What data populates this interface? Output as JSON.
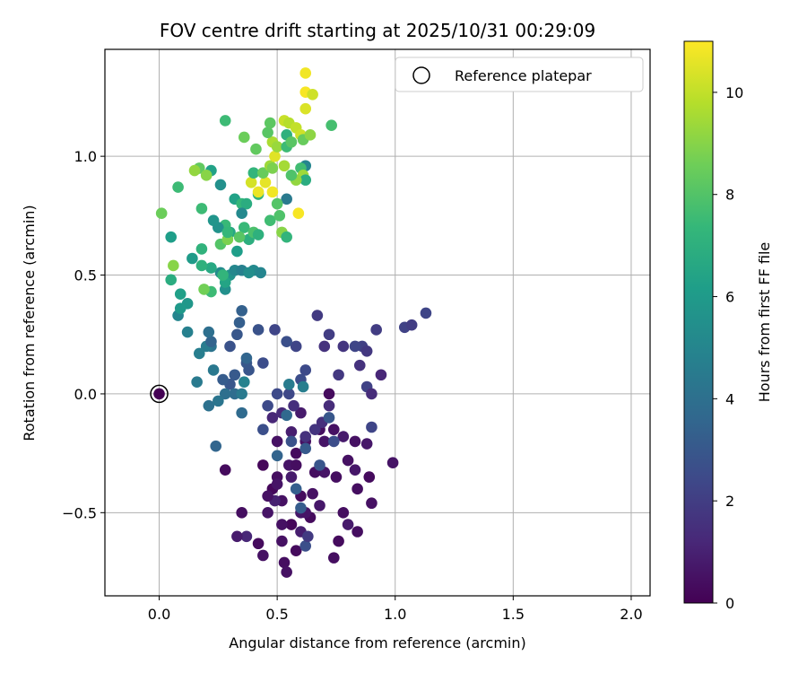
{
  "chart_data": {
    "type": "scatter",
    "title": "FOV centre drift starting at 2025/10/31 00:29:09",
    "xlabel": "Angular distance from reference (arcmin)",
    "ylabel": "Rotation from reference (arcmin)",
    "xlim": [
      -0.23,
      2.08
    ],
    "ylim": [
      -0.85,
      1.45
    ],
    "xticks": [
      0.0,
      0.5,
      1.0,
      1.5,
      2.0
    ],
    "xtick_labels": [
      "0.0",
      "0.5",
      "1.0",
      "1.5",
      "2.0"
    ],
    "yticks": [
      -0.5,
      0.0,
      0.5,
      1.0
    ],
    "ytick_labels": [
      "−0.5",
      "0.0",
      "0.5",
      "1.0"
    ],
    "grid": true,
    "legend": {
      "position": "top-right",
      "entries": [
        "Reference platepar"
      ]
    },
    "colorbar": {
      "label": "Hours from first FF file",
      "range": [
        0,
        11
      ],
      "ticks": [
        0,
        2,
        4,
        6,
        8,
        10
      ],
      "tick_labels": [
        "0",
        "2",
        "4",
        "6",
        "8",
        "10"
      ],
      "colormap": [
        "#440154",
        "#482878",
        "#3e4989",
        "#31688e",
        "#26828e",
        "#1f9e89",
        "#35b779",
        "#6ece58",
        "#b5de2b",
        "#fde725"
      ]
    },
    "reference_point": {
      "x": 0.0,
      "y": 0.0
    },
    "points": [
      [
        0.0,
        0.0,
        0.0
      ],
      [
        0.72,
        0.0,
        0.3
      ],
      [
        0.68,
        -0.15,
        0.4
      ],
      [
        0.62,
        -0.2,
        0.5
      ],
      [
        0.58,
        -0.25,
        0.3
      ],
      [
        0.55,
        -0.3,
        0.6
      ],
      [
        0.5,
        -0.35,
        0.4
      ],
      [
        0.48,
        -0.4,
        0.2
      ],
      [
        0.52,
        -0.45,
        0.5
      ],
      [
        0.6,
        -0.5,
        0.7
      ],
      [
        0.64,
        -0.52,
        0.3
      ],
      [
        0.7,
        -0.33,
        0.6
      ],
      [
        0.75,
        -0.35,
        0.4
      ],
      [
        0.8,
        -0.28,
        0.5
      ],
      [
        0.83,
        -0.32,
        0.7
      ],
      [
        0.78,
        -0.5,
        0.4
      ],
      [
        0.76,
        -0.62,
        0.3
      ],
      [
        0.84,
        -0.58,
        0.4
      ],
      [
        0.8,
        -0.55,
        0.8
      ],
      [
        0.56,
        -0.55,
        0.2
      ],
      [
        0.52,
        -0.62,
        0.5
      ],
      [
        0.58,
        -0.66,
        0.3
      ],
      [
        0.53,
        -0.71,
        0.4
      ],
      [
        0.54,
        -0.75,
        0.5
      ],
      [
        0.46,
        -0.5,
        0.6
      ],
      [
        0.44,
        -0.3,
        0.2
      ],
      [
        0.28,
        -0.32,
        0.3
      ],
      [
        0.35,
        -0.5,
        0.4
      ],
      [
        0.42,
        -0.63,
        0.3
      ],
      [
        0.44,
        -0.68,
        0.5
      ],
      [
        0.56,
        -0.35,
        0.8
      ],
      [
        0.6,
        -0.43,
        0.3
      ],
      [
        0.65,
        -0.42,
        0.5
      ],
      [
        0.68,
        -0.47,
        0.7
      ],
      [
        0.66,
        -0.33,
        0.4
      ],
      [
        0.7,
        -0.2,
        0.6
      ],
      [
        0.74,
        -0.15,
        0.5
      ],
      [
        0.78,
        -0.18,
        0.8
      ],
      [
        0.83,
        -0.2,
        0.5
      ],
      [
        0.89,
        -0.35,
        0.3
      ],
      [
        0.84,
        -0.4,
        0.4
      ],
      [
        0.9,
        -0.46,
        0.5
      ],
      [
        0.99,
        -0.29,
        0.6
      ],
      [
        0.88,
        -0.21,
        0.7
      ],
      [
        0.6,
        -0.08,
        0.8
      ],
      [
        0.56,
        -0.16,
        0.9
      ],
      [
        0.5,
        -0.2,
        0.5
      ],
      [
        0.49,
        -0.45,
        1.0
      ],
      [
        0.52,
        -0.55,
        0.5
      ],
      [
        0.74,
        -0.69,
        0.4
      ],
      [
        0.37,
        -0.6,
        1.2
      ],
      [
        0.33,
        -0.6,
        0.8
      ],
      [
        0.6,
        -0.58,
        0.9
      ],
      [
        0.62,
        -0.5,
        0.6
      ],
      [
        0.58,
        -0.3,
        0.4
      ],
      [
        0.46,
        -0.43,
        0.5
      ],
      [
        0.5,
        -0.38,
        0.6
      ],
      [
        0.48,
        -0.1,
        1.2
      ],
      [
        0.52,
        -0.08,
        1.3
      ],
      [
        0.57,
        -0.05,
        1.5
      ],
      [
        0.62,
        -0.18,
        1.6
      ],
      [
        0.66,
        -0.15,
        1.7
      ],
      [
        0.69,
        -0.12,
        1.5
      ],
      [
        0.72,
        -0.05,
        1.4
      ],
      [
        0.76,
        0.08,
        1.8
      ],
      [
        0.7,
        0.2,
        1.6
      ],
      [
        0.67,
        0.33,
        1.9
      ],
      [
        0.72,
        0.25,
        2.0
      ],
      [
        0.78,
        0.2,
        1.7
      ],
      [
        0.85,
        0.12,
        1.6
      ],
      [
        0.86,
        0.2,
        2.1
      ],
      [
        0.88,
        0.03,
        2.2
      ],
      [
        0.9,
        -0.14,
        2.3
      ],
      [
        0.9,
        0.0,
        1.4
      ],
      [
        0.92,
        0.27,
        2.0
      ],
      [
        0.94,
        0.08,
        1.2
      ],
      [
        0.88,
        0.18,
        1.8
      ],
      [
        0.83,
        0.2,
        2.3
      ],
      [
        1.04,
        0.28,
        2.2
      ],
      [
        1.07,
        0.29,
        2.0
      ],
      [
        1.13,
        0.34,
        2.3
      ],
      [
        0.5,
        0.0,
        2.5
      ],
      [
        0.55,
        0.0,
        2.4
      ],
      [
        0.6,
        0.06,
        2.6
      ],
      [
        0.62,
        0.1,
        2.5
      ],
      [
        0.58,
        0.2,
        2.3
      ],
      [
        0.54,
        0.22,
        2.7
      ],
      [
        0.49,
        0.27,
        2.3
      ],
      [
        0.44,
        0.13,
        2.6
      ],
      [
        0.42,
        0.27,
        2.8
      ],
      [
        0.38,
        0.1,
        2.9
      ],
      [
        0.37,
        0.13,
        3.0
      ],
      [
        0.32,
        0.08,
        3.1
      ],
      [
        0.3,
        0.04,
        3.0
      ],
      [
        0.27,
        0.06,
        3.2
      ],
      [
        0.3,
        0.2,
        2.8
      ],
      [
        0.33,
        0.25,
        3.0
      ],
      [
        0.34,
        0.3,
        3.3
      ],
      [
        0.35,
        0.35,
        3.4
      ],
      [
        0.37,
        0.15,
        3.6
      ],
      [
        0.46,
        -0.05,
        2.5
      ],
      [
        0.44,
        -0.15,
        2.7
      ],
      [
        0.56,
        -0.2,
        2.8
      ],
      [
        0.62,
        -0.23,
        3.1
      ],
      [
        0.68,
        -0.3,
        2.9
      ],
      [
        0.72,
        -0.1,
        3.0
      ],
      [
        0.74,
        -0.2,
        2.6
      ],
      [
        0.62,
        -0.64,
        2.7
      ],
      [
        0.6,
        -0.48,
        3.2
      ],
      [
        0.63,
        -0.6,
        1.9
      ],
      [
        0.58,
        -0.4,
        3.3
      ],
      [
        0.5,
        -0.26,
        3.5
      ],
      [
        0.54,
        -0.09,
        3.7
      ],
      [
        0.35,
        -0.08,
        3.8
      ],
      [
        0.32,
        0.0,
        3.9
      ],
      [
        0.28,
        0.0,
        4.0
      ],
      [
        0.24,
        -0.22,
        3.6
      ],
      [
        0.21,
        -0.05,
        4.1
      ],
      [
        0.22,
        0.2,
        4.2
      ],
      [
        0.2,
        0.2,
        4.6
      ],
      [
        0.23,
        0.1,
        4.4
      ],
      [
        0.25,
        -0.03,
        4.3
      ],
      [
        0.16,
        0.05,
        4.5
      ],
      [
        0.17,
        0.17,
        4.7
      ],
      [
        0.22,
        0.22,
        3.5
      ],
      [
        0.21,
        0.26,
        4.0
      ],
      [
        0.12,
        0.26,
        4.8
      ],
      [
        0.08,
        0.33,
        5.0
      ],
      [
        0.35,
        0.0,
        4.5
      ],
      [
        0.36,
        0.05,
        4.9
      ],
      [
        0.55,
        0.04,
        4.6
      ],
      [
        0.61,
        0.03,
        4.7
      ],
      [
        0.28,
        0.44,
        5.5
      ],
      [
        0.3,
        0.5,
        5.6
      ],
      [
        0.32,
        0.52,
        5.1
      ],
      [
        0.35,
        0.52,
        4.8
      ],
      [
        0.4,
        0.52,
        5.2
      ],
      [
        0.38,
        0.51,
        5.4
      ],
      [
        0.43,
        0.51,
        5.0
      ],
      [
        0.26,
        0.51,
        5.3
      ],
      [
        0.22,
        0.53,
        6.6
      ],
      [
        0.18,
        0.54,
        7.0
      ],
      [
        0.14,
        0.57,
        6.0
      ],
      [
        0.18,
        0.61,
        7.1
      ],
      [
        0.12,
        0.38,
        5.8
      ],
      [
        0.09,
        0.42,
        6.2
      ],
      [
        0.09,
        0.36,
        5.9
      ],
      [
        0.05,
        0.48,
        6.8
      ],
      [
        0.06,
        0.54,
        9.0
      ],
      [
        0.22,
        0.43,
        7.5
      ],
      [
        0.19,
        0.44,
        8.6
      ],
      [
        0.28,
        0.47,
        6.4
      ],
      [
        0.27,
        0.5,
        7.2
      ],
      [
        0.33,
        0.6,
        6.1
      ],
      [
        0.3,
        0.68,
        6.5
      ],
      [
        0.28,
        0.71,
        7.4
      ],
      [
        0.26,
        0.63,
        8.0
      ],
      [
        0.29,
        0.65,
        8.8
      ],
      [
        0.25,
        0.7,
        5.6
      ],
      [
        0.23,
        0.73,
        5.7
      ],
      [
        0.32,
        0.82,
        6.3
      ],
      [
        0.35,
        0.8,
        7.3
      ],
      [
        0.37,
        0.8,
        6.8
      ],
      [
        0.35,
        0.76,
        5.2
      ],
      [
        0.36,
        0.7,
        7.4
      ],
      [
        0.38,
        0.65,
        6.9
      ],
      [
        0.4,
        0.68,
        7.8
      ],
      [
        0.42,
        0.67,
        7.0
      ],
      [
        0.42,
        0.84,
        7.1
      ],
      [
        0.47,
        0.73,
        7.6
      ],
      [
        0.51,
        0.75,
        7.9
      ],
      [
        0.52,
        0.68,
        9.0
      ],
      [
        0.54,
        0.66,
        7.2
      ],
      [
        0.59,
        0.76,
        10.9
      ],
      [
        0.54,
        0.82,
        4.5
      ],
      [
        0.45,
        0.89,
        10.6
      ],
      [
        0.48,
        0.85,
        10.8
      ],
      [
        0.42,
        0.85,
        10.7
      ],
      [
        0.39,
        0.89,
        10.3
      ],
      [
        0.4,
        0.93,
        7.2
      ],
      [
        0.44,
        0.93,
        8.4
      ],
      [
        0.47,
        0.96,
        9.4
      ],
      [
        0.48,
        0.95,
        8.8
      ],
      [
        0.49,
        1.0,
        10.5
      ],
      [
        0.48,
        1.06,
        9.6
      ],
      [
        0.46,
        1.1,
        8.1
      ],
      [
        0.47,
        1.14,
        8.2
      ],
      [
        0.5,
        1.04,
        9.3
      ],
      [
        0.54,
        1.04,
        7.5
      ],
      [
        0.54,
        1.09,
        7.0
      ],
      [
        0.53,
        1.15,
        10.1
      ],
      [
        0.55,
        1.14,
        9.8
      ],
      [
        0.56,
        1.06,
        8.1
      ],
      [
        0.58,
        1.12,
        10.0
      ],
      [
        0.6,
        1.09,
        10.2
      ],
      [
        0.61,
        1.07,
        8.4
      ],
      [
        0.62,
        1.2,
        10.4
      ],
      [
        0.62,
        1.27,
        10.9
      ],
      [
        0.65,
        1.26,
        10.2
      ],
      [
        0.62,
        1.35,
        10.8
      ],
      [
        0.64,
        1.09,
        9.1
      ],
      [
        0.73,
        1.13,
        7.7
      ],
      [
        0.62,
        0.96,
        5.0
      ],
      [
        0.6,
        0.95,
        7.6
      ],
      [
        0.61,
        0.92,
        9.4
      ],
      [
        0.62,
        0.9,
        6.8
      ],
      [
        0.58,
        0.9,
        9.2
      ],
      [
        0.56,
        0.92,
        7.9
      ],
      [
        0.53,
        0.96,
        9.5
      ],
      [
        0.5,
        0.8,
        8.0
      ],
      [
        0.41,
        1.03,
        8.3
      ],
      [
        0.36,
        1.08,
        8.5
      ],
      [
        0.28,
        1.15,
        7.5
      ],
      [
        0.26,
        0.88,
        5.5
      ],
      [
        0.22,
        0.94,
        6.3
      ],
      [
        0.17,
        0.95,
        8.3
      ],
      [
        0.15,
        0.94,
        9.2
      ],
      [
        0.2,
        0.92,
        9.0
      ],
      [
        0.08,
        0.87,
        7.5
      ],
      [
        0.18,
        0.78,
        7.5
      ],
      [
        0.05,
        0.66,
        6.1
      ],
      [
        0.01,
        0.76,
        8.5
      ],
      [
        0.29,
        0.68,
        7.3
      ],
      [
        0.34,
        0.66,
        8.1
      ]
    ]
  }
}
